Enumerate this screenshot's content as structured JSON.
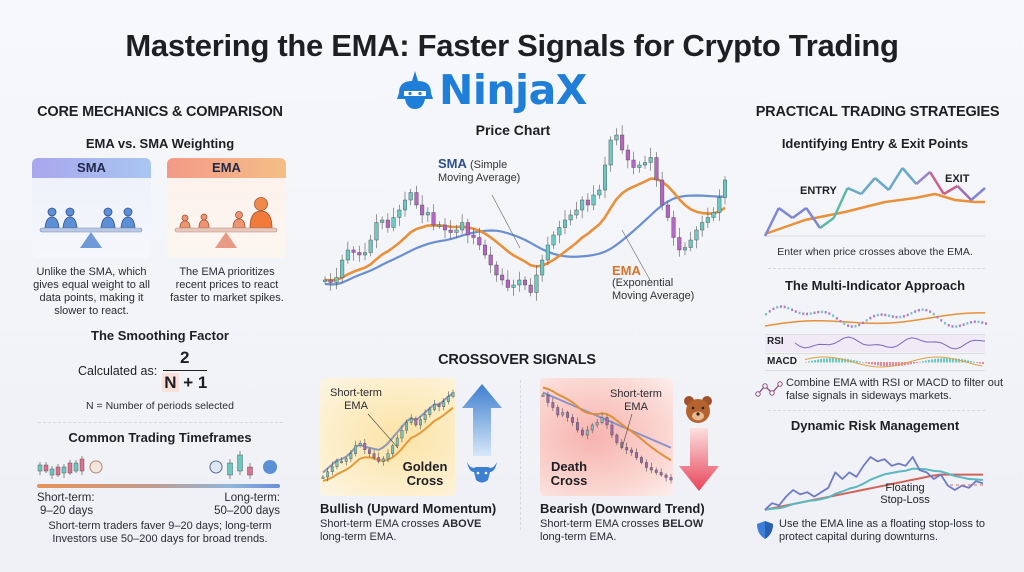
{
  "title": "Mastering the EMA: Faster Signals for Crypto Trading",
  "logo": {
    "text": "NinjaX",
    "color": "#1f7fd8"
  },
  "colors": {
    "ema": "#e8903a",
    "sma": "#6a8fd0",
    "bull_candle": "#6cc9c2",
    "bear_candle": "#b765c4"
  },
  "left": {
    "section_title": "CORE MECHANICS & COMPARISON",
    "weighting": {
      "title": "EMA vs. SMA Weighting",
      "sma": {
        "label": "SMA",
        "text": "Unlike the SMA, which gives equal weight to all data points, making it slower to react."
      },
      "ema": {
        "label": "EMA",
        "text": "The EMA prioritizes recent prices to react faster to market spikes."
      }
    },
    "smoothing": {
      "title": "The Smoothing Factor",
      "prefix": "Calculated as:",
      "numerator": "2",
      "denominator_n": "N",
      "denominator_rest": "+ 1",
      "note": "N = Number of periods selected"
    },
    "timeframes": {
      "title": "Common Trading Timeframes",
      "short_label": "Short-term:",
      "short_value": "9–20 days",
      "long_label": "Long-term:",
      "long_value": "50–200 days",
      "caption": "Short-term traders faver 9–20 days; long-term Investors use 50–200 days for broad trends."
    }
  },
  "center": {
    "chart_title": "Price Chart",
    "sma_label": "SMA",
    "sma_sub": "(Simple",
    "sma_sub2": "Moving Average)",
    "ema_label": "EMA",
    "ema_sub": "(Exponential",
    "ema_sub2": "Moving Average)",
    "crossover": {
      "title": "CROSSOVER SIGNALS",
      "bull": {
        "annot": "Short-term EMA",
        "cross": "Golden Cross",
        "heading": "Bullish (Upward Momentum)",
        "text1": "Short-term EMA crosses ",
        "emph": "ABOVE",
        "text2": "long-term EMA."
      },
      "bear": {
        "annot": "Short-term EMA",
        "cross": "Death Cross",
        "heading": "Bearish (Downward Trend)",
        "text1": "Short-term EMA crosses ",
        "emph": "BELOW",
        "text2": "long-term EMA."
      }
    }
  },
  "right": {
    "section_title": "PRACTICAL TRADING STRATEGIES",
    "entry": {
      "title": "Identifying Entry & Exit Points",
      "entry_label": "ENTRY",
      "exit_label": "EXIT",
      "caption": "Enter when price crosses above the EMA."
    },
    "multi": {
      "title": "The Multi-Indicator Approach",
      "rsi": "RSI",
      "macd": "MACD",
      "caption": "Combine EMA with RSI or MACD to filter out false signals in sideways markets."
    },
    "risk": {
      "title": "Dynamic Risk Management",
      "annot": "Floating Stop-Loss",
      "caption": "Use the EMA line as a floating stop-loss to protect capital during downturns."
    }
  }
}
